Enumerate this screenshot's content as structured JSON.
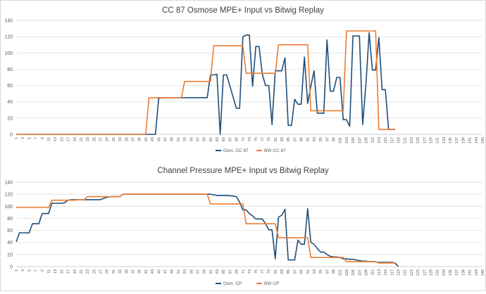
{
  "chart_data": [
    {
      "type": "line",
      "title": "CC 87 Osmose MPE+ Input vs Bitwig Replay",
      "xlabel": "",
      "ylabel": "",
      "ylim": [
        0,
        140
      ],
      "yticks": [
        0,
        20,
        40,
        60,
        80,
        100,
        120,
        140
      ],
      "xlim": [
        1,
        145
      ],
      "xticks": [
        1,
        3,
        5,
        7,
        9,
        11,
        13,
        15,
        17,
        19,
        21,
        23,
        25,
        27,
        29,
        31,
        33,
        35,
        37,
        39,
        41,
        43,
        45,
        47,
        49,
        51,
        53,
        55,
        57,
        59,
        61,
        63,
        65,
        67,
        69,
        71,
        73,
        75,
        77,
        79,
        81,
        83,
        85,
        87,
        89,
        91,
        93,
        95,
        97,
        99,
        101,
        103,
        105,
        107,
        109,
        111,
        113,
        115,
        117,
        119,
        121,
        123,
        125,
        127,
        129,
        131,
        133,
        135,
        137,
        139,
        141,
        143,
        145
      ],
      "grid": "horizontal",
      "legend": "bottom-center",
      "series": [
        {
          "name": "Osm. CC 87",
          "color": "#1f4e79",
          "x": [
            1,
            43,
            44,
            45,
            46,
            60,
            61,
            62,
            63,
            64,
            65,
            66,
            69,
            70,
            71,
            72,
            73,
            74,
            75,
            76,
            77,
            78,
            79,
            80,
            81,
            82,
            83,
            84,
            85,
            86,
            87,
            88,
            89,
            90,
            91,
            92,
            93,
            94,
            95,
            96,
            97,
            98,
            99,
            100,
            101,
            102,
            103,
            104,
            105,
            106,
            107,
            108,
            109,
            110,
            111,
            112,
            113,
            114,
            115,
            116,
            117,
            118
          ],
          "y": [
            0,
            0,
            0,
            44,
            45,
            45,
            73,
            73,
            74,
            0,
            73,
            73,
            32,
            32,
            120,
            122,
            122,
            59,
            108,
            108,
            74,
            60,
            60,
            12,
            78,
            78,
            78,
            94,
            11,
            11,
            43,
            37,
            37,
            95,
            38,
            59,
            78,
            26,
            26,
            26,
            116,
            53,
            53,
            70,
            70,
            18,
            18,
            10,
            121,
            121,
            121,
            12,
            61,
            125,
            79,
            79,
            119,
            55,
            55,
            6,
            6,
            6
          ]
        },
        {
          "name": "BW CC 87",
          "color": "#ed7d31",
          "x": [
            1,
            41,
            42,
            52,
            53,
            61,
            62,
            71,
            72,
            81,
            82,
            91,
            92,
            102,
            103,
            112,
            113,
            118
          ],
          "y": [
            0,
            0,
            45,
            45,
            65,
            65,
            109,
            109,
            75,
            75,
            110,
            110,
            29,
            29,
            127,
            127,
            6,
            6
          ]
        }
      ]
    },
    {
      "type": "line",
      "title": "Channel Pressure MPE+ Input vs Bitwig Replay",
      "xlabel": "",
      "ylabel": "",
      "ylim": [
        0,
        140
      ],
      "yticks": [
        0,
        20,
        40,
        60,
        80,
        100,
        120,
        140
      ],
      "xlim": [
        1,
        145
      ],
      "xticks": [
        1,
        3,
        5,
        7,
        9,
        11,
        13,
        15,
        17,
        19,
        21,
        23,
        25,
        27,
        29,
        31,
        33,
        35,
        37,
        39,
        41,
        43,
        45,
        47,
        49,
        51,
        53,
        55,
        57,
        59,
        61,
        63,
        65,
        67,
        69,
        71,
        73,
        75,
        77,
        79,
        81,
        83,
        85,
        87,
        89,
        91,
        93,
        95,
        97,
        99,
        101,
        103,
        105,
        107,
        109,
        111,
        113,
        115,
        117,
        119,
        121,
        123,
        125,
        127,
        129,
        131,
        133,
        135,
        137,
        139,
        141,
        143,
        145
      ],
      "grid": "horizontal",
      "legend": "bottom-center",
      "series": [
        {
          "name": "Osm. CP",
          "color": "#1f4e79",
          "x": [
            1,
            2,
            5,
            6,
            8,
            9,
            11,
            12,
            15,
            16,
            17,
            18,
            21,
            22,
            23,
            24,
            27,
            28,
            29,
            30,
            33,
            34,
            35,
            36,
            39,
            40,
            44,
            45,
            60,
            61,
            62,
            63,
            65,
            66,
            68,
            69,
            70,
            71,
            72,
            73,
            74,
            75,
            76,
            77,
            78,
            79,
            80,
            81,
            82,
            83,
            84,
            85,
            86,
            87,
            88,
            89,
            90,
            91,
            92,
            93,
            94,
            95,
            96,
            97,
            98,
            99,
            100,
            101,
            102,
            103,
            104,
            105,
            106,
            107,
            108,
            109,
            110,
            111,
            112,
            113,
            114,
            115,
            116,
            117,
            118,
            119
          ],
          "y": [
            41,
            56,
            56,
            71,
            71,
            88,
            88,
            105,
            105,
            106,
            110,
            111,
            111,
            111,
            111,
            111,
            111,
            113,
            115,
            116,
            116,
            120,
            120,
            120,
            120,
            120,
            120,
            120,
            120,
            120,
            119,
            118,
            118,
            118,
            117,
            116,
            107,
            94,
            94,
            88,
            84,
            79,
            79,
            79,
            71,
            61,
            61,
            13,
            82,
            85,
            95,
            11,
            11,
            11,
            44,
            37,
            37,
            96,
            40,
            37,
            30,
            24,
            24,
            20,
            17,
            16,
            16,
            15,
            13,
            13,
            12,
            12,
            11,
            10,
            9,
            9,
            8,
            8,
            8,
            7,
            7,
            7,
            7,
            7,
            6,
            0
          ]
        },
        {
          "name": "BW CP",
          "color": "#ed7d31",
          "x": [
            1,
            11,
            12,
            19,
            20,
            22,
            23,
            33,
            34,
            60,
            61,
            71,
            72,
            81,
            82,
            91,
            92,
            102,
            103,
            112,
            113,
            118
          ],
          "y": [
            98,
            98,
            110,
            110,
            111,
            111,
            116,
            116,
            120,
            120,
            104,
            104,
            71,
            71,
            48,
            48,
            15,
            15,
            8,
            8,
            6,
            6
          ]
        }
      ]
    }
  ]
}
